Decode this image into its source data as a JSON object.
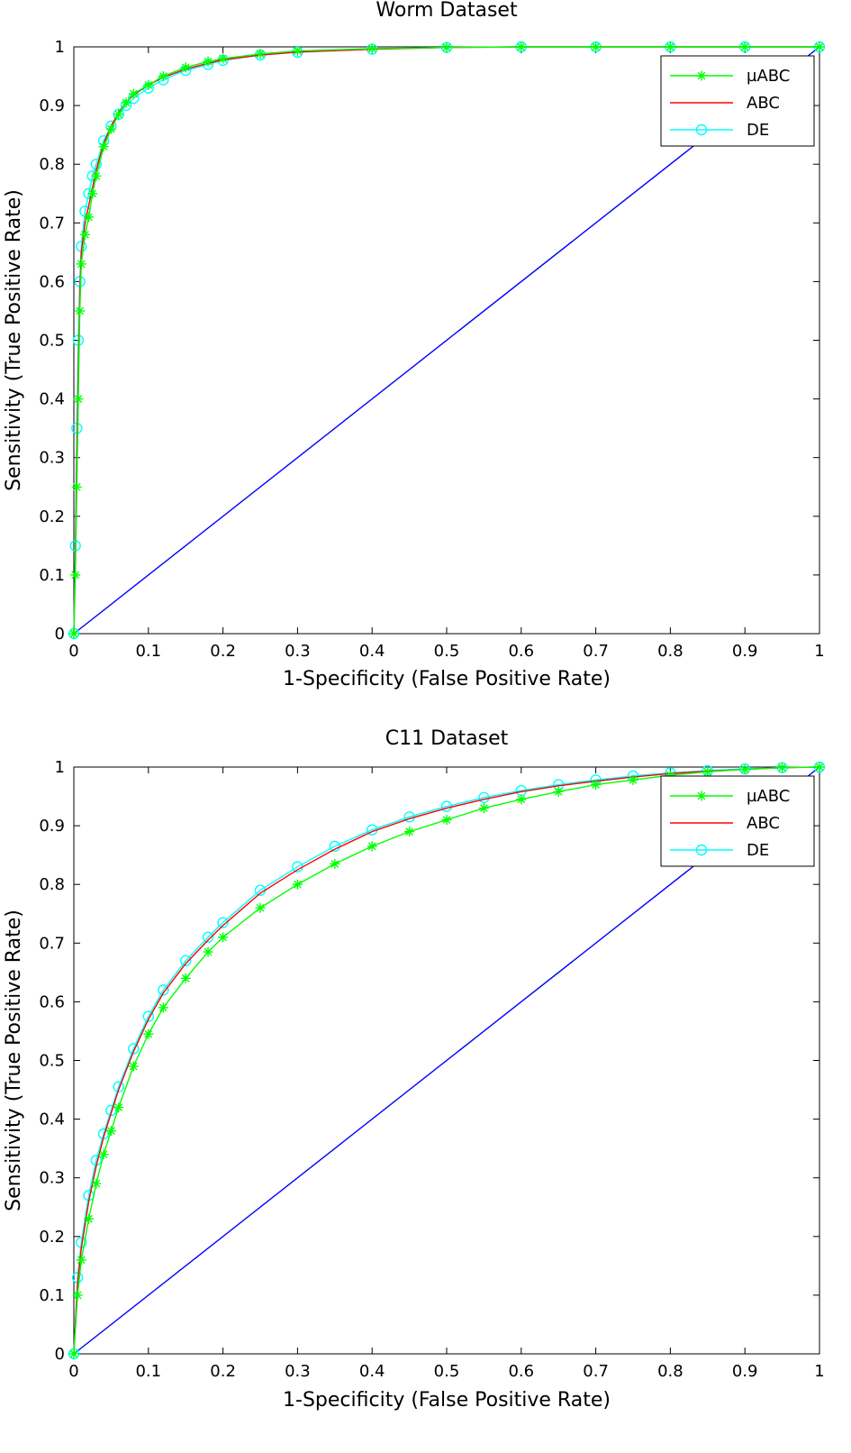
{
  "chart_data": [
    {
      "type": "line",
      "title": "Worm Dataset",
      "xlabel": "1-Specificity (False Positive Rate)",
      "ylabel": "Sensitivity (True Positive Rate)",
      "xlim": [
        0,
        1
      ],
      "ylim": [
        0,
        1
      ],
      "xticks": [
        "0",
        "0.1",
        "0.2",
        "0.3",
        "0.4",
        "0.5",
        "0.6",
        "0.7",
        "0.8",
        "0.9",
        "1"
      ],
      "yticks": [
        "0",
        "0.1",
        "0.2",
        "0.3",
        "0.4",
        "0.5",
        "0.6",
        "0.7",
        "0.8",
        "0.9",
        "1"
      ],
      "grid": false,
      "legend_position": "top-right",
      "series": [
        {
          "name": "µABC",
          "color": "#00ff00",
          "marker": "asterisk",
          "x": [
            0,
            0.002,
            0.004,
            0.006,
            0.008,
            0.01,
            0.015,
            0.02,
            0.025,
            0.03,
            0.04,
            0.05,
            0.06,
            0.07,
            0.08,
            0.1,
            0.12,
            0.15,
            0.18,
            0.2,
            0.25,
            0.3,
            0.4,
            0.5,
            0.6,
            0.7,
            0.8,
            0.9,
            1
          ],
          "y": [
            0,
            0.1,
            0.25,
            0.4,
            0.55,
            0.63,
            0.68,
            0.71,
            0.75,
            0.78,
            0.83,
            0.86,
            0.885,
            0.905,
            0.92,
            0.935,
            0.95,
            0.965,
            0.975,
            0.98,
            0.988,
            0.993,
            0.997,
            0.999,
            1,
            1,
            1,
            1,
            1
          ]
        },
        {
          "name": "ABC",
          "color": "#ff0000",
          "marker": "none",
          "x": [
            0,
            0.002,
            0.004,
            0.006,
            0.008,
            0.01,
            0.015,
            0.02,
            0.025,
            0.03,
            0.04,
            0.05,
            0.06,
            0.07,
            0.08,
            0.1,
            0.12,
            0.15,
            0.18,
            0.2,
            0.25,
            0.3,
            0.4,
            0.5,
            0.6,
            0.7,
            0.8,
            0.9,
            1
          ],
          "y": [
            0,
            0.12,
            0.3,
            0.45,
            0.58,
            0.65,
            0.7,
            0.73,
            0.76,
            0.79,
            0.835,
            0.865,
            0.888,
            0.905,
            0.918,
            0.935,
            0.948,
            0.962,
            0.972,
            0.978,
            0.986,
            0.991,
            0.996,
            0.999,
            1,
            1,
            1,
            1,
            1
          ]
        },
        {
          "name": "DE",
          "color": "#00ffff",
          "marker": "circle",
          "x": [
            0,
            0.002,
            0.004,
            0.006,
            0.008,
            0.01,
            0.015,
            0.02,
            0.025,
            0.03,
            0.04,
            0.05,
            0.06,
            0.07,
            0.08,
            0.1,
            0.12,
            0.15,
            0.18,
            0.2,
            0.25,
            0.3,
            0.4,
            0.5,
            0.6,
            0.7,
            0.8,
            0.9,
            1
          ],
          "y": [
            0,
            0.15,
            0.35,
            0.5,
            0.6,
            0.66,
            0.72,
            0.75,
            0.78,
            0.8,
            0.84,
            0.865,
            0.885,
            0.9,
            0.912,
            0.93,
            0.944,
            0.96,
            0.97,
            0.977,
            0.986,
            0.991,
            0.996,
            0.999,
            1,
            1,
            1,
            1,
            1
          ]
        },
        {
          "name": "",
          "color": "#0000ff",
          "marker": "none",
          "x": [
            0,
            1
          ],
          "y": [
            0,
            1
          ]
        }
      ]
    },
    {
      "type": "line",
      "title": "C11 Dataset",
      "xlabel": "1-Specificity (False Positive Rate)",
      "ylabel": "Sensitivity (True Positive Rate)",
      "xlim": [
        0,
        1
      ],
      "ylim": [
        0,
        1
      ],
      "xticks": [
        "0",
        "0.1",
        "0.2",
        "0.3",
        "0.4",
        "0.5",
        "0.6",
        "0.7",
        "0.8",
        "0.9",
        "1"
      ],
      "yticks": [
        "0",
        "0.1",
        "0.2",
        "0.3",
        "0.4",
        "0.5",
        "0.6",
        "0.7",
        "0.8",
        "0.9",
        "1"
      ],
      "grid": false,
      "legend_position": "top-right",
      "series": [
        {
          "name": "µABC",
          "color": "#00ff00",
          "marker": "asterisk",
          "x": [
            0,
            0.005,
            0.01,
            0.02,
            0.03,
            0.04,
            0.05,
            0.06,
            0.08,
            0.1,
            0.12,
            0.15,
            0.18,
            0.2,
            0.25,
            0.3,
            0.35,
            0.4,
            0.45,
            0.5,
            0.55,
            0.6,
            0.65,
            0.7,
            0.75,
            0.8,
            0.85,
            0.9,
            0.95,
            1
          ],
          "y": [
            0,
            0.1,
            0.16,
            0.23,
            0.29,
            0.34,
            0.38,
            0.42,
            0.49,
            0.545,
            0.59,
            0.64,
            0.685,
            0.71,
            0.76,
            0.8,
            0.835,
            0.865,
            0.89,
            0.91,
            0.93,
            0.945,
            0.958,
            0.97,
            0.978,
            0.986,
            0.992,
            0.996,
            0.999,
            1
          ]
        },
        {
          "name": "ABC",
          "color": "#ff0000",
          "marker": "none",
          "x": [
            0,
            0.005,
            0.01,
            0.02,
            0.03,
            0.04,
            0.05,
            0.06,
            0.08,
            0.1,
            0.12,
            0.15,
            0.18,
            0.2,
            0.25,
            0.3,
            0.35,
            0.4,
            0.45,
            0.5,
            0.55,
            0.6,
            0.65,
            0.7,
            0.75,
            0.8,
            0.85,
            0.9,
            0.95,
            1
          ],
          "y": [
            0,
            0.12,
            0.18,
            0.26,
            0.32,
            0.37,
            0.41,
            0.45,
            0.515,
            0.57,
            0.615,
            0.665,
            0.705,
            0.73,
            0.785,
            0.825,
            0.86,
            0.89,
            0.912,
            0.93,
            0.945,
            0.958,
            0.968,
            0.976,
            0.983,
            0.989,
            0.993,
            0.996,
            0.999,
            1
          ]
        },
        {
          "name": "DE",
          "color": "#00ffff",
          "marker": "circle",
          "x": [
            0,
            0.005,
            0.01,
            0.02,
            0.03,
            0.04,
            0.05,
            0.06,
            0.08,
            0.1,
            0.12,
            0.15,
            0.18,
            0.2,
            0.25,
            0.3,
            0.35,
            0.4,
            0.45,
            0.5,
            0.55,
            0.6,
            0.65,
            0.7,
            0.75,
            0.8,
            0.85,
            0.9,
            0.95,
            1
          ],
          "y": [
            0,
            0.13,
            0.19,
            0.27,
            0.33,
            0.375,
            0.415,
            0.455,
            0.52,
            0.575,
            0.62,
            0.67,
            0.71,
            0.735,
            0.79,
            0.83,
            0.865,
            0.893,
            0.915,
            0.933,
            0.948,
            0.96,
            0.97,
            0.978,
            0.985,
            0.99,
            0.994,
            0.997,
            0.999,
            1
          ]
        },
        {
          "name": "",
          "color": "#0000ff",
          "marker": "none",
          "x": [
            0,
            1
          ],
          "y": [
            0,
            1
          ]
        }
      ]
    }
  ]
}
